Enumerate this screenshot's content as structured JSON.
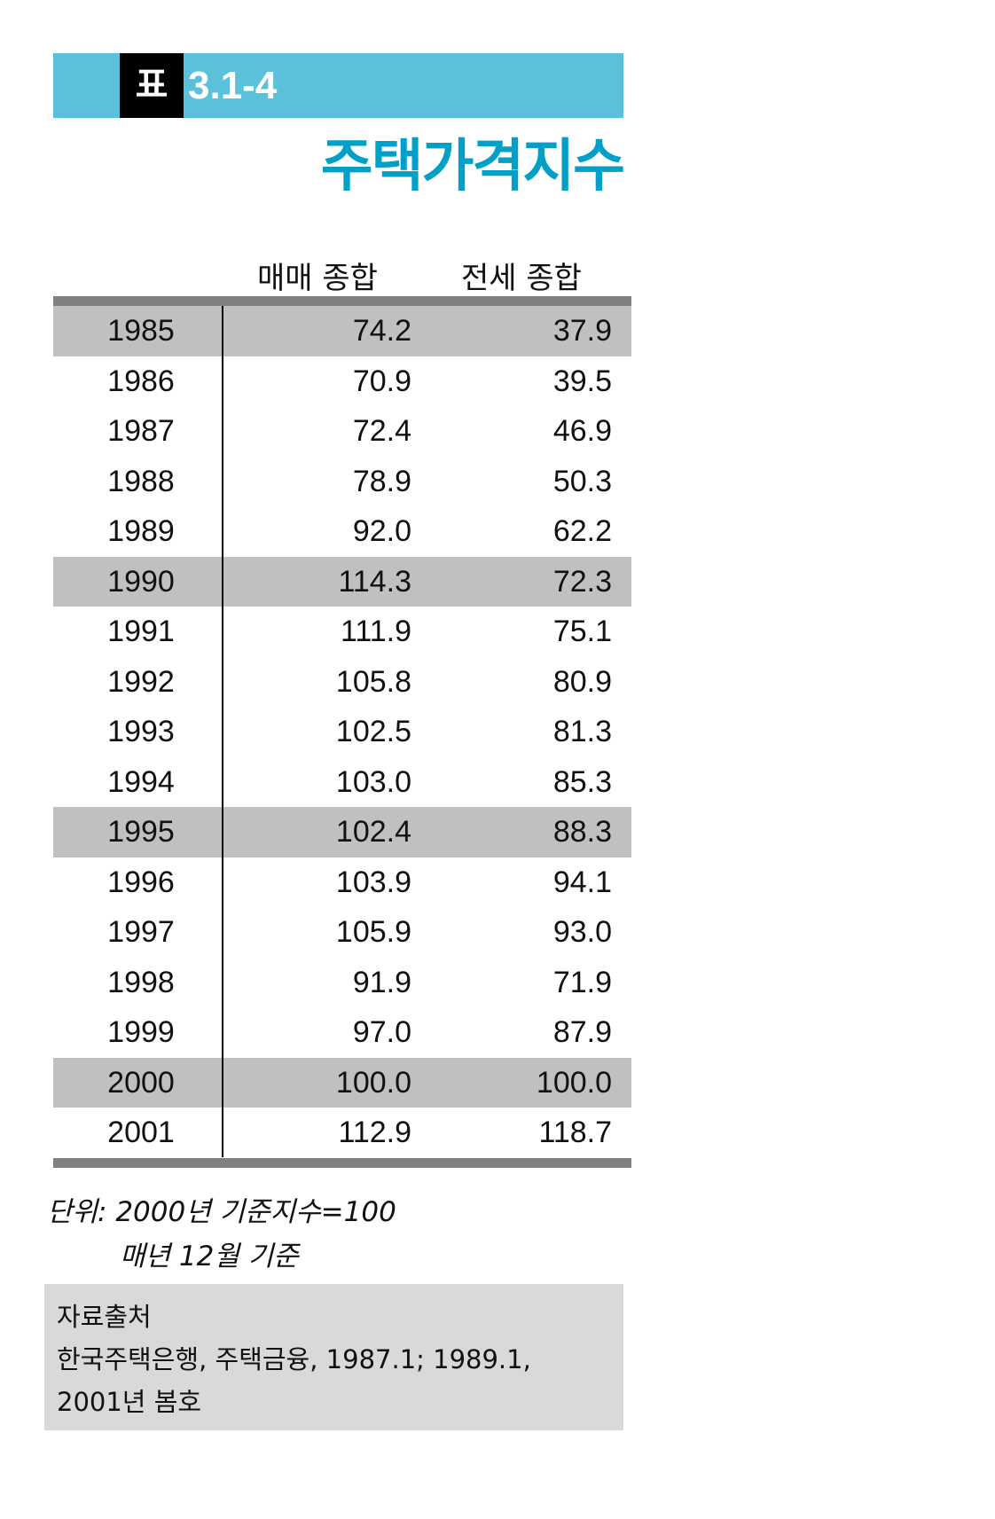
{
  "header": {
    "label_prefix": "표",
    "table_number": "3.1-4",
    "title": "주택가격지수"
  },
  "colors": {
    "banner": "#5bc0da",
    "title": "#00a0c8",
    "rule": "#808080",
    "shade": "#c0c0c0",
    "source_box": "#d9d9d9"
  },
  "table": {
    "columns": [
      "",
      "매매 종합",
      "전세 종합"
    ],
    "rows": [
      {
        "year": "1985",
        "sale": "74.2",
        "jeonse": "37.9",
        "shaded": true
      },
      {
        "year": "1986",
        "sale": "70.9",
        "jeonse": "39.5",
        "shaded": false
      },
      {
        "year": "1987",
        "sale": "72.4",
        "jeonse": "46.9",
        "shaded": false
      },
      {
        "year": "1988",
        "sale": "78.9",
        "jeonse": "50.3",
        "shaded": false
      },
      {
        "year": "1989",
        "sale": "92.0",
        "jeonse": "62.2",
        "shaded": false
      },
      {
        "year": "1990",
        "sale": "114.3",
        "jeonse": "72.3",
        "shaded": true
      },
      {
        "year": "1991",
        "sale": "111.9",
        "jeonse": "75.1",
        "shaded": false
      },
      {
        "year": "1992",
        "sale": "105.8",
        "jeonse": "80.9",
        "shaded": false
      },
      {
        "year": "1993",
        "sale": "102.5",
        "jeonse": "81.3",
        "shaded": false
      },
      {
        "year": "1994",
        "sale": "103.0",
        "jeonse": "85.3",
        "shaded": false
      },
      {
        "year": "1995",
        "sale": "102.4",
        "jeonse": "88.3",
        "shaded": true
      },
      {
        "year": "1996",
        "sale": "103.9",
        "jeonse": "94.1",
        "shaded": false
      },
      {
        "year": "1997",
        "sale": "105.9",
        "jeonse": "93.0",
        "shaded": false
      },
      {
        "year": "1998",
        "sale": "91.9",
        "jeonse": "71.9",
        "shaded": false
      },
      {
        "year": "1999",
        "sale": "97.0",
        "jeonse": "87.9",
        "shaded": false
      },
      {
        "year": "2000",
        "sale": "100.0",
        "jeonse": "100.0",
        "shaded": true
      },
      {
        "year": "2001",
        "sale": "112.9",
        "jeonse": "118.7",
        "shaded": false
      }
    ]
  },
  "notes": {
    "line1": "단위: 2000년 기준지수=100",
    "line2": "매년 12월 기준"
  },
  "source": {
    "heading": "자료출처",
    "line1": "한국주택은행, 주택금융, 1987.1; 1989.1,",
    "line2": "2001년 봄호"
  }
}
